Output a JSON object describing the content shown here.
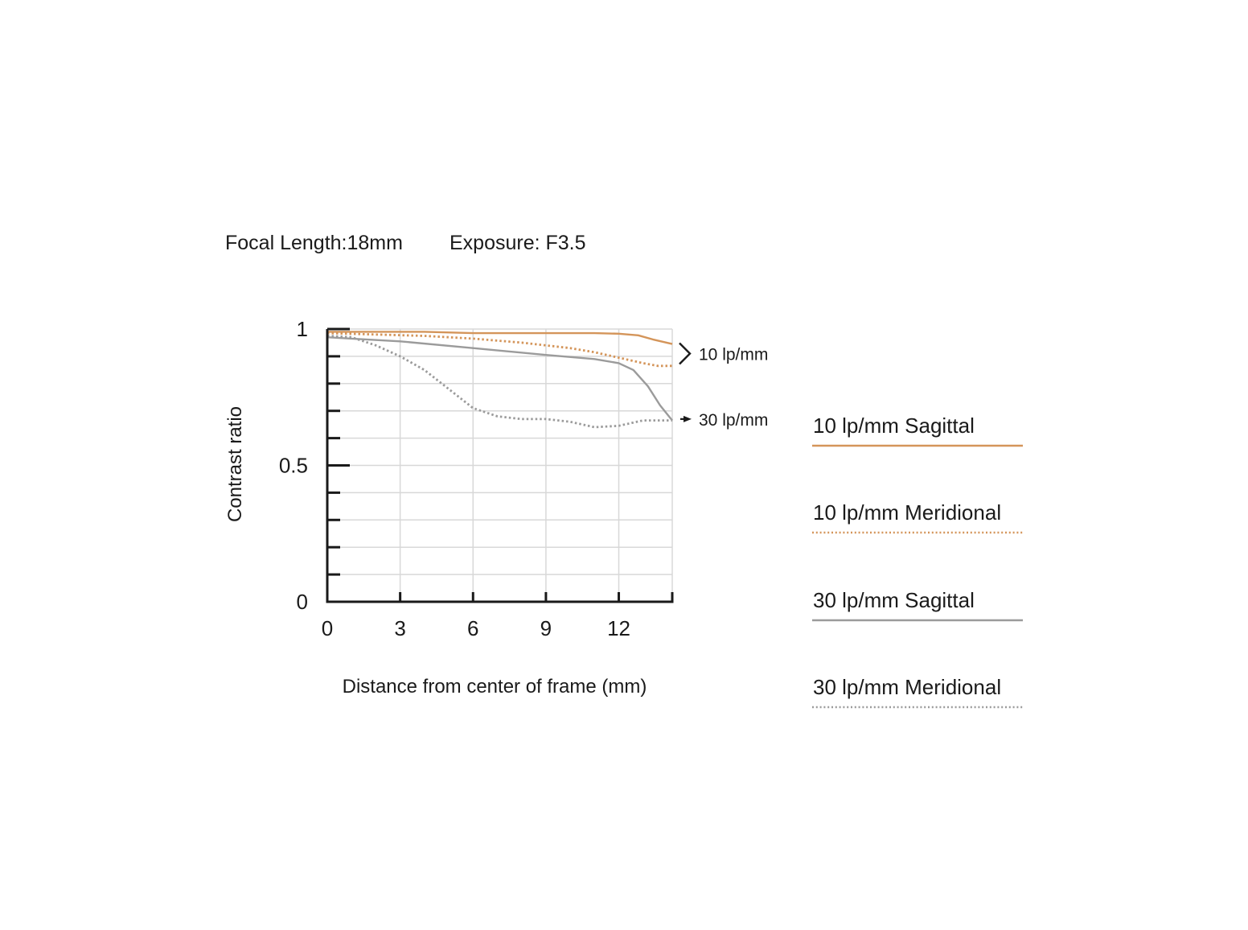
{
  "chart_data": {
    "type": "line",
    "title": "Focal Length:18mm",
    "subtitle": "Exposure: F3.5",
    "xlabel": "Distance from center of frame (mm)",
    "ylabel": "Contrast ratio",
    "xlim": [
      0,
      14.2
    ],
    "ylim": [
      0,
      1
    ],
    "x_ticks": [
      0,
      3,
      6,
      9,
      12
    ],
    "y_ticks": [
      0,
      0.5,
      1
    ],
    "grid": true,
    "legend_position": "right",
    "group_labels": [
      {
        "text": "10 lp/mm",
        "y": 0.91
      },
      {
        "text": "30 lp/mm",
        "y": 0.67
      }
    ],
    "series": [
      {
        "name": "10 lp/mm Sagittal",
        "color": "#d4955a",
        "dash": "solid",
        "x": [
          0,
          2,
          4,
          6,
          8,
          10,
          11,
          12,
          12.8,
          13.4,
          14.2
        ],
        "y": [
          0.99,
          0.99,
          0.99,
          0.985,
          0.985,
          0.985,
          0.985,
          0.983,
          0.977,
          0.962,
          0.945
        ]
      },
      {
        "name": "10 lp/mm Meridional",
        "color": "#d4955a",
        "dash": "dotted",
        "x": [
          0,
          2,
          4,
          6,
          8,
          10,
          11,
          12,
          13,
          13.6,
          14.2
        ],
        "y": [
          0.985,
          0.98,
          0.975,
          0.965,
          0.95,
          0.93,
          0.915,
          0.895,
          0.875,
          0.865,
          0.865
        ]
      },
      {
        "name": "30 lp/mm Sagittal",
        "color": "#9b9b9b",
        "dash": "solid",
        "x": [
          0,
          1,
          3,
          6,
          9,
          11,
          12,
          12.6,
          13.2,
          13.7,
          14.2
        ],
        "y": [
          0.97,
          0.965,
          0.955,
          0.93,
          0.905,
          0.89,
          0.875,
          0.85,
          0.79,
          0.72,
          0.665
        ]
      },
      {
        "name": "30 lp/mm Meridional",
        "color": "#9b9b9b",
        "dash": "dotted",
        "x": [
          0,
          1,
          2,
          3,
          4,
          5,
          6,
          7,
          8,
          9,
          10,
          11,
          12,
          13,
          14.2
        ],
        "y": [
          0.975,
          0.97,
          0.94,
          0.9,
          0.85,
          0.78,
          0.71,
          0.68,
          0.67,
          0.67,
          0.66,
          0.64,
          0.645,
          0.665,
          0.665
        ]
      }
    ]
  }
}
